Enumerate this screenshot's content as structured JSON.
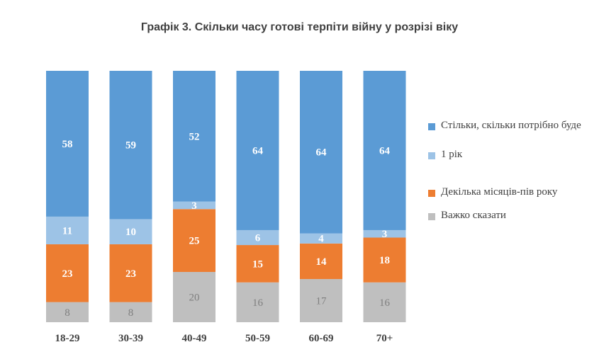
{
  "chart_data": {
    "type": "bar",
    "stacked": true,
    "title": "Графік 3. Скільки часу готові терпіти війну у розрізі віку",
    "categories": [
      "18-29",
      "30-39",
      "40-49",
      "50-59",
      "60-69",
      "70+"
    ],
    "series": [
      {
        "name": "Важко сказати",
        "color": "#bfbfbf",
        "values": [
          8,
          8,
          20,
          16,
          17,
          16
        ]
      },
      {
        "name": "Декілька місяців-пів року",
        "color": "#ed7d31",
        "values": [
          23,
          23,
          25,
          15,
          14,
          18
        ]
      },
      {
        "name": "1 рік",
        "color": "#9dc3e6",
        "values": [
          11,
          10,
          3,
          6,
          4,
          3
        ]
      },
      {
        "name": "Стільки, скільки потрібно буде",
        "color": "#5b9bd5",
        "values": [
          58,
          59,
          52,
          64,
          64,
          64
        ]
      }
    ],
    "legend_position": "right",
    "grid": false
  }
}
